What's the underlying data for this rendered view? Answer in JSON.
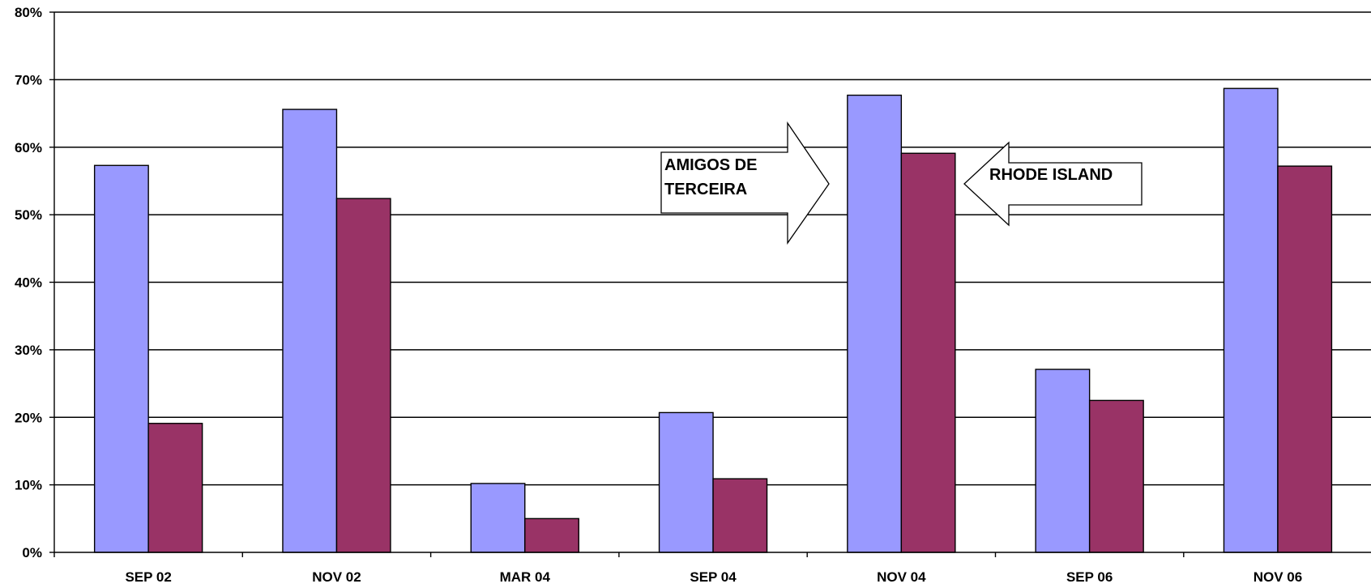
{
  "chart_data": {
    "type": "bar",
    "categories": [
      "SEP 02",
      "NOV 02",
      "MAR 04",
      "SEP 04",
      "NOV 04",
      "SEP 06",
      "NOV 06"
    ],
    "series": [
      {
        "values": [
          57.3,
          65.6,
          10.2,
          20.7,
          67.7,
          27.1,
          68.7
        ]
      },
      {
        "values": [
          19.1,
          52.4,
          5.0,
          10.9,
          59.1,
          22.5,
          57.2
        ]
      }
    ],
    "ylim": [
      0,
      80
    ],
    "yticks": [
      0,
      10,
      20,
      30,
      40,
      50,
      60,
      70,
      80
    ],
    "ytick_labels": [
      "0%",
      "10%",
      "20%",
      "30%",
      "40%",
      "50%",
      "60%",
      "70%",
      "80%"
    ],
    "grid": true,
    "colors": [
      "#9999ff",
      "#993366"
    ],
    "annotations": [
      {
        "text_lines": [
          "AMIGOS DE",
          "TERCEIRA"
        ],
        "shape": "right-arrow"
      },
      {
        "text_lines": [
          "RHODE ISLAND"
        ],
        "shape": "left-arrow"
      }
    ]
  }
}
